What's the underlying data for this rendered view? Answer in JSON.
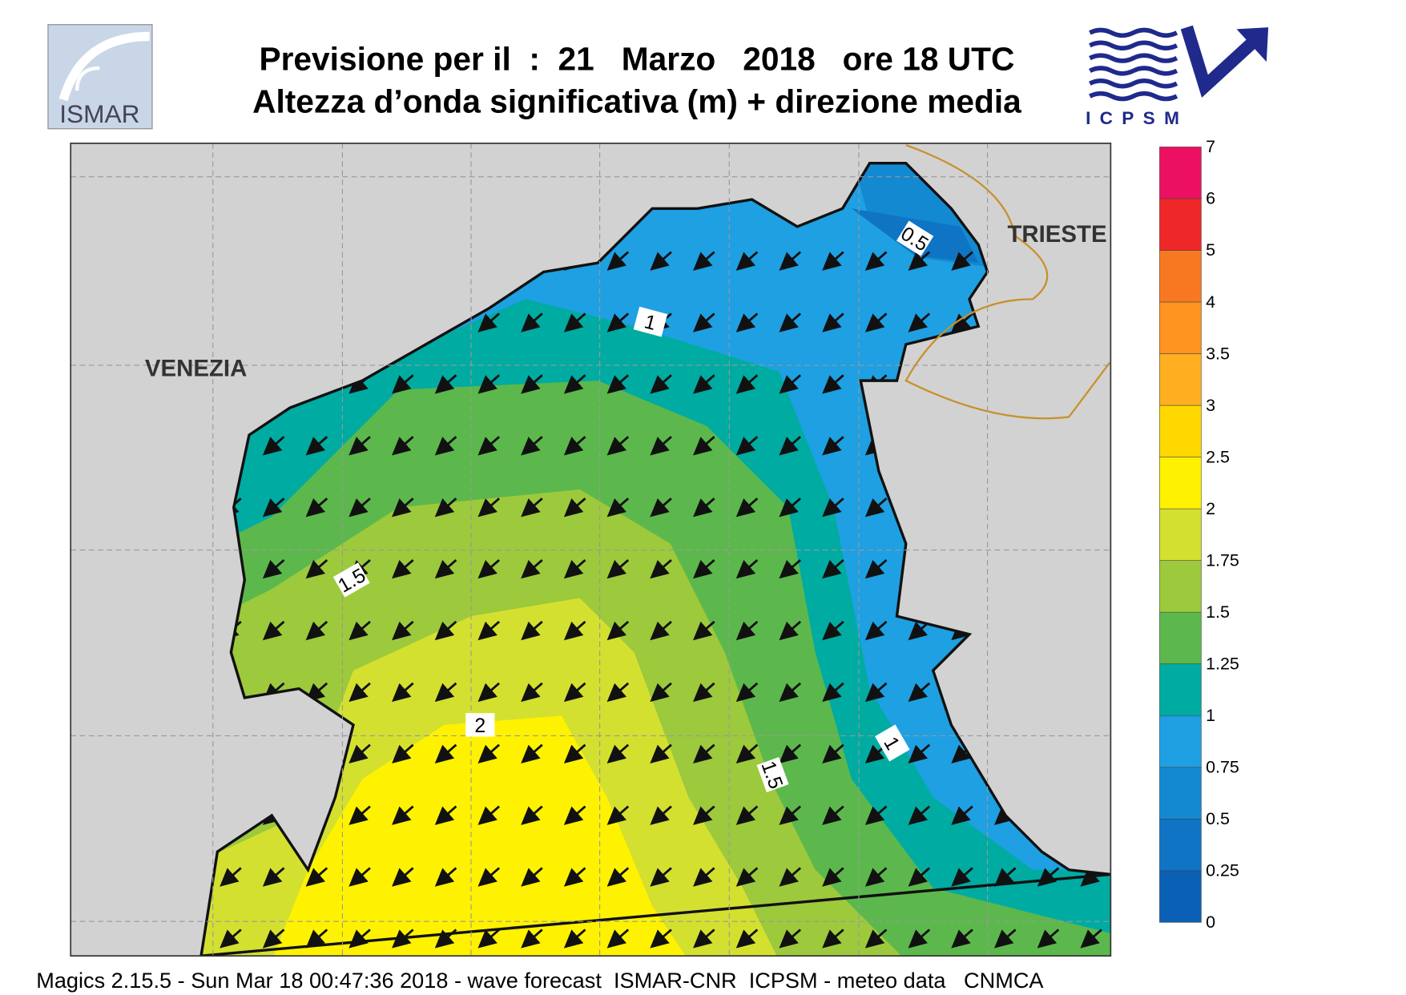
{
  "header": {
    "title": "Previsione per il  :  21   Marzo   2018   ore 18 UTC",
    "subtitle": "Altezza d’onda significativa (m) + direzione media"
  },
  "logos": {
    "left": "ISMAR",
    "right": "ICPSM"
  },
  "places": [
    "VENEZIA",
    "TRIESTE"
  ],
  "contour_labels": [
    0.5,
    1,
    1,
    1.5,
    1.5,
    2
  ],
  "colorbar": {
    "levels": [
      0,
      0.25,
      0.5,
      0.75,
      1,
      1.25,
      1.5,
      1.75,
      2,
      2.5,
      3,
      3.5,
      4,
      5,
      6,
      7
    ],
    "colors": [
      "#0a60b4",
      "#0f74c4",
      "#1389d2",
      "#1ea0e2",
      "#00aba2",
      "#5cb84c",
      "#9dc93c",
      "#d4e030",
      "#fff200",
      "#ffd800",
      "#ffaf20",
      "#ff9420",
      "#f87822",
      "#ee2828",
      "#ec1062"
    ]
  },
  "footer": "Magics 2.15.5 - Sun Mar 18 00:47:36 2018 - wave forecast  ISMAR-CNR  ICPSM - meteo data   CNMCA"
}
